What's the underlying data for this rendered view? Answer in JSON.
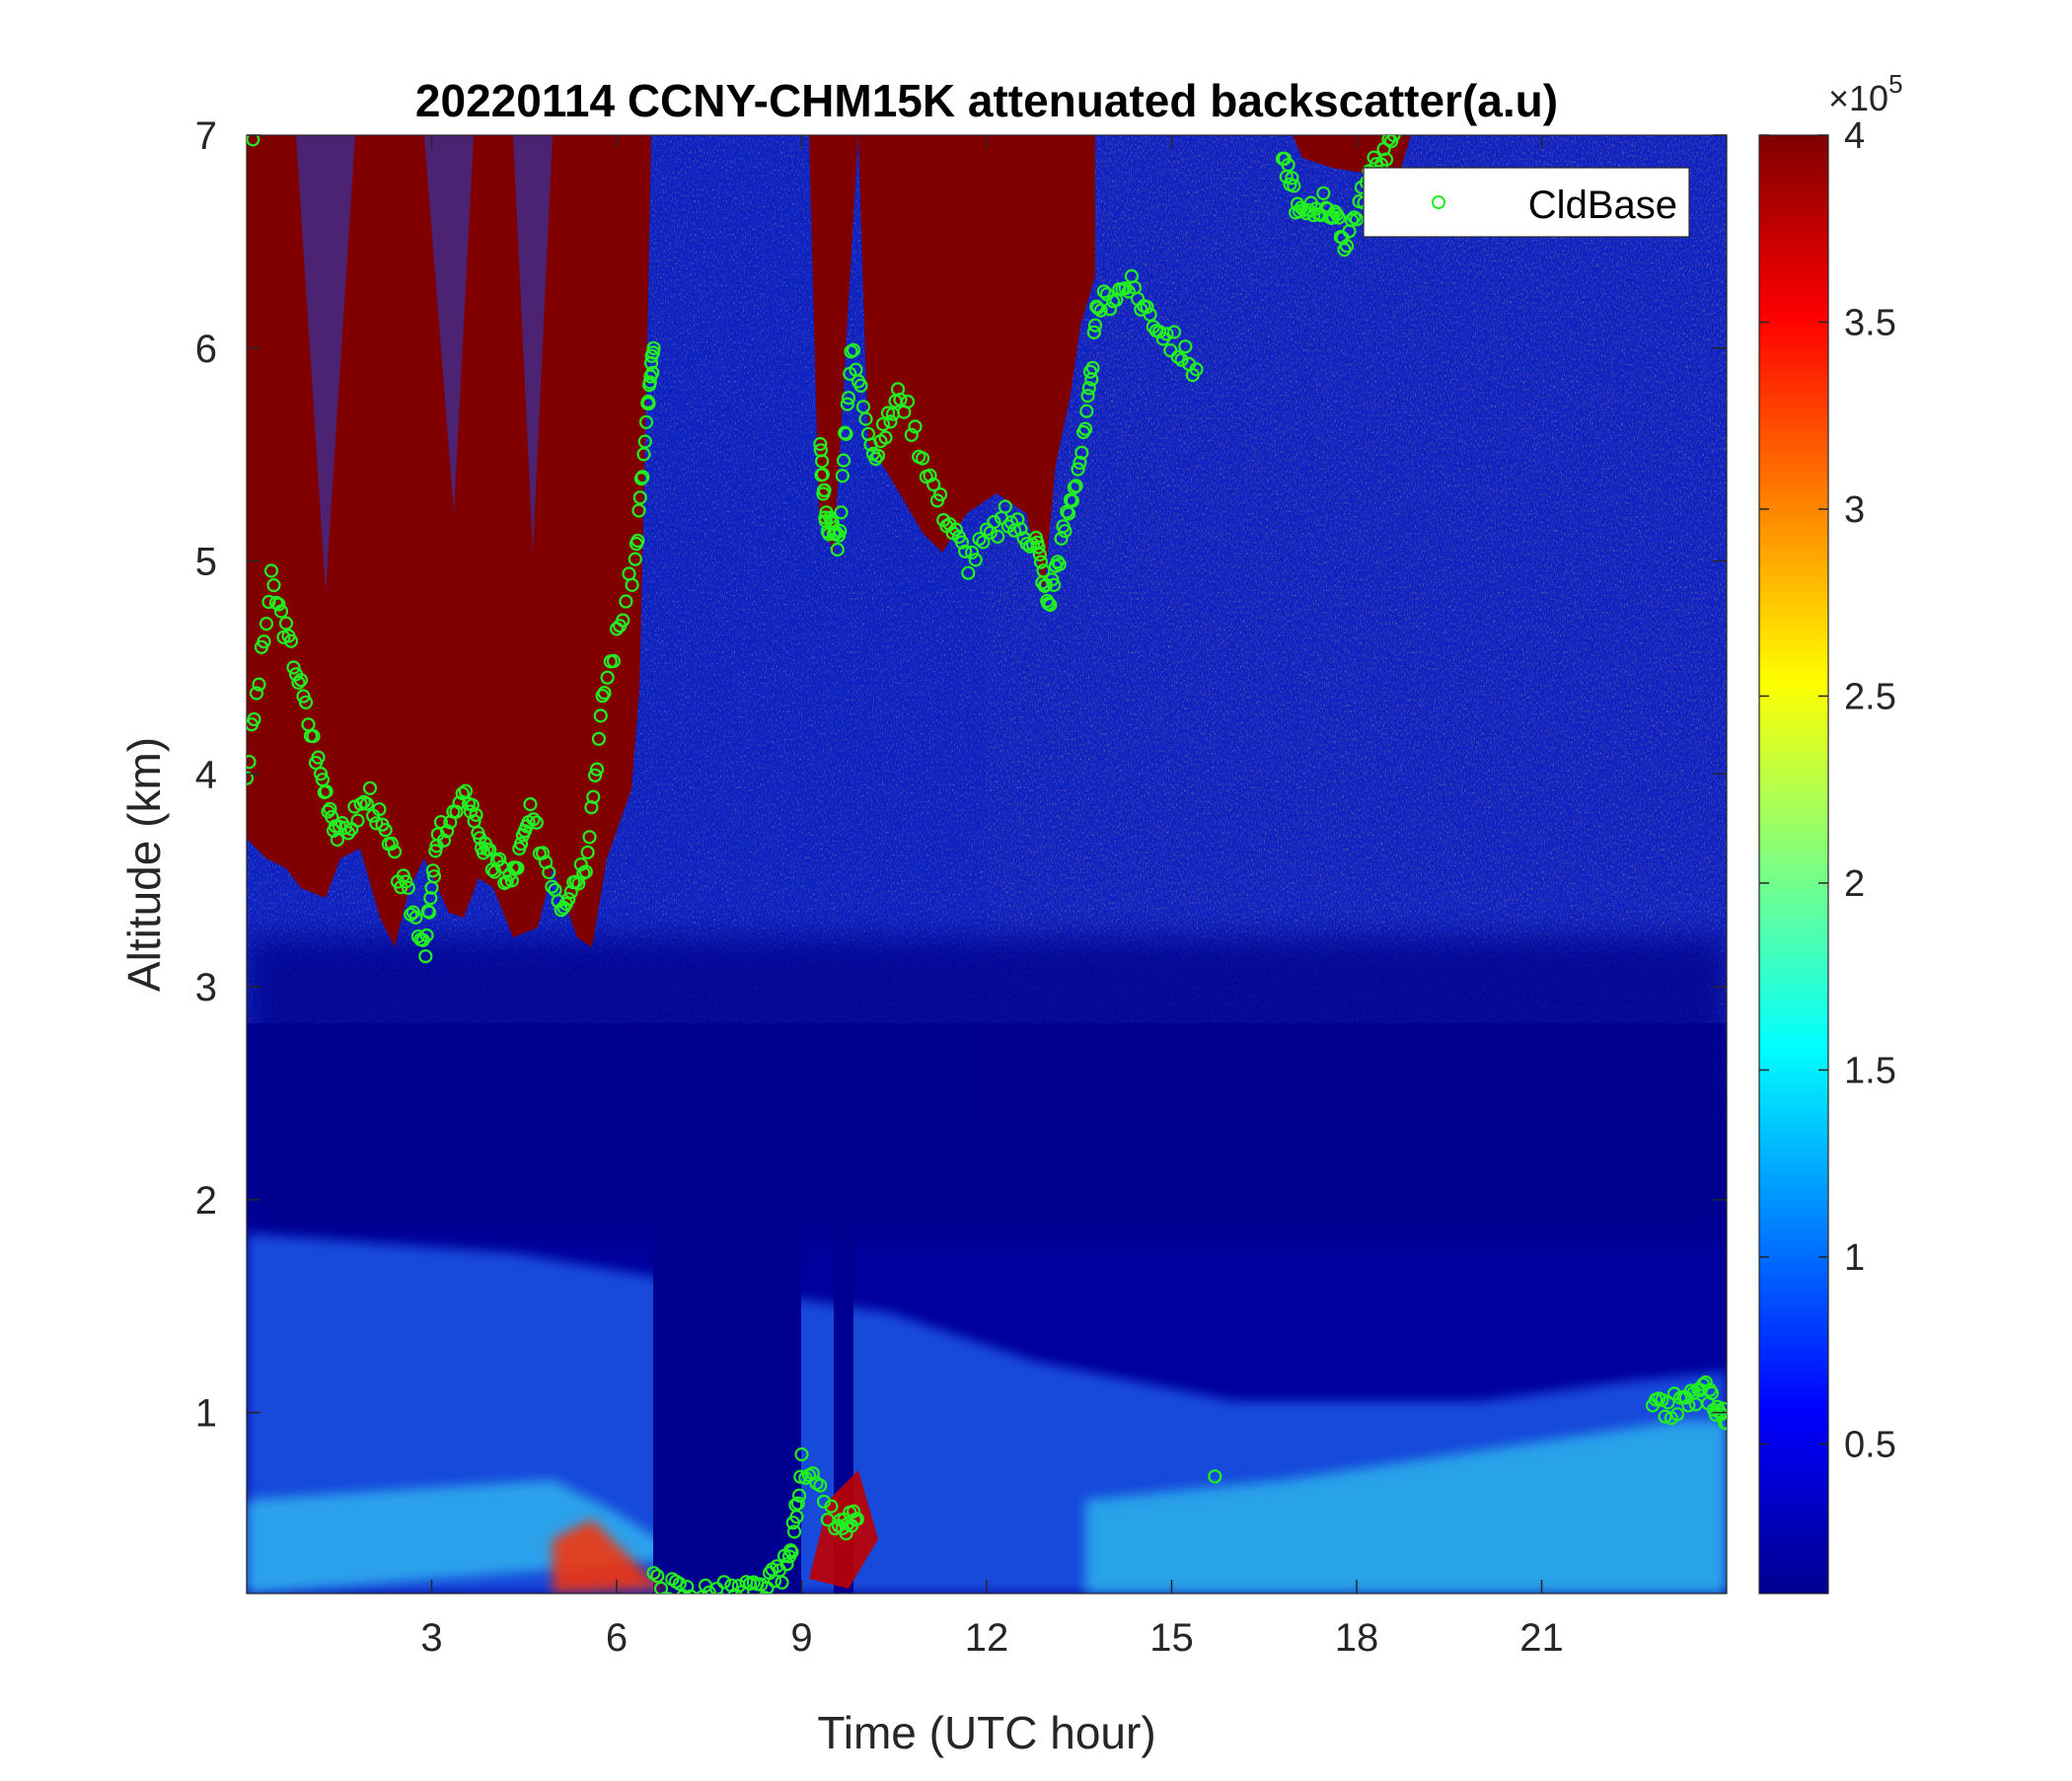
{
  "chart_data": {
    "type": "heatmap",
    "title": "20220114 CCNY-CHM15K attenuated backscatter(a.u)",
    "xlabel": "Time (UTC hour)",
    "ylabel": "Altitude (km)",
    "xlim": [
      0,
      24
    ],
    "ylim": [
      0.15,
      7
    ],
    "xticks": [
      3,
      6,
      9,
      12,
      15,
      18,
      21
    ],
    "yticks": [
      1,
      2,
      3,
      4,
      5,
      6,
      7
    ],
    "colorbar": {
      "colormap": "jet",
      "clim": [
        0.1,
        4
      ],
      "ticks": [
        0.5,
        1,
        1.5,
        2,
        2.5,
        3,
        3.5,
        4
      ],
      "exponent_label": "×10",
      "exponent_power": "5"
    },
    "legend": {
      "placement": "top-right",
      "entries": [
        "CldBase"
      ]
    },
    "colors": {
      "cloud_base_marker": "#22ee22",
      "background_low": "#00008f",
      "saturated": "#800000"
    },
    "features": {
      "mid_level_cloud_base_profile": [
        [
          0.0,
          4.0
        ],
        [
          0.4,
          4.9
        ],
        [
          0.8,
          4.5
        ],
        [
          1.2,
          4.0
        ],
        [
          1.5,
          3.7
        ],
        [
          2.0,
          3.9
        ],
        [
          2.5,
          3.5
        ],
        [
          2.9,
          3.2
        ],
        [
          3.1,
          3.7
        ],
        [
          3.6,
          3.9
        ],
        [
          3.9,
          3.6
        ],
        [
          4.3,
          3.5
        ],
        [
          4.6,
          3.8
        ],
        [
          5.1,
          3.4
        ],
        [
          5.5,
          3.6
        ],
        [
          5.8,
          4.4
        ],
        [
          6.3,
          5.0
        ],
        [
          6.5,
          5.7
        ],
        [
          6.6,
          6.0
        ]
      ],
      "upper_cloud_base_profile": [
        [
          9.3,
          5.5
        ],
        [
          9.4,
          5.2
        ],
        [
          9.6,
          5.1
        ],
        [
          9.8,
          6.0
        ],
        [
          10.2,
          5.5
        ],
        [
          10.6,
          5.8
        ],
        [
          11.2,
          5.3
        ],
        [
          11.7,
          5.0
        ],
        [
          12.3,
          5.2
        ],
        [
          12.8,
          5.1
        ],
        [
          13.0,
          4.8
        ],
        [
          13.3,
          5.2
        ],
        [
          13.6,
          5.6
        ],
        [
          13.8,
          6.2
        ],
        [
          14.3,
          6.3
        ],
        [
          14.8,
          6.1
        ],
        [
          15.4,
          5.9
        ]
      ],
      "high_cloud_base_profile": [
        [
          16.8,
          6.9
        ],
        [
          17.1,
          6.6
        ],
        [
          17.5,
          6.7
        ],
        [
          17.8,
          6.5
        ],
        [
          18.2,
          6.8
        ],
        [
          18.6,
          7.0
        ]
      ],
      "boundary_layer_cloud_base_profile": [
        [
          6.6,
          0.2
        ],
        [
          7.2,
          0.15
        ],
        [
          7.8,
          0.15
        ],
        [
          8.4,
          0.17
        ],
        [
          8.8,
          0.3
        ],
        [
          9.0,
          0.75
        ],
        [
          9.6,
          0.45
        ],
        [
          9.9,
          0.5
        ]
      ],
      "late_day_cloud_base_profile": [
        [
          22.8,
          1.0
        ],
        [
          23.3,
          1.05
        ],
        [
          23.7,
          1.1
        ],
        [
          24.0,
          0.95
        ]
      ],
      "isolated_cloud_base_points": [
        [
          15.7,
          0.7
        ],
        [
          0.1,
          6.98
        ]
      ]
    }
  }
}
